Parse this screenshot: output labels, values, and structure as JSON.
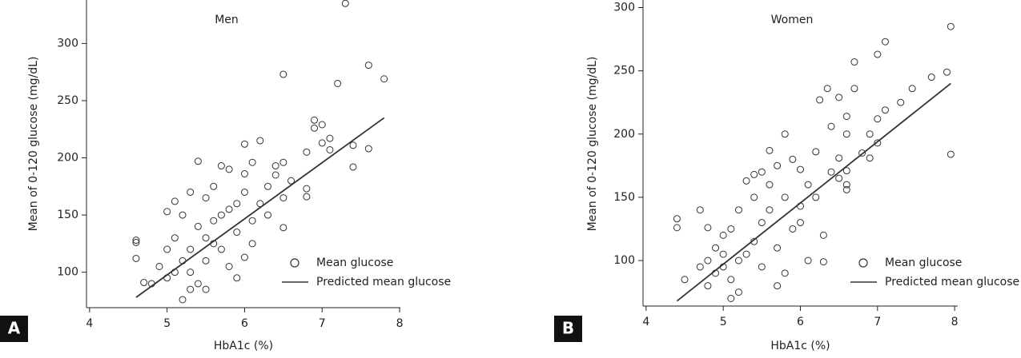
{
  "chart_data": [
    {
      "type": "scatter",
      "panel_label": "A",
      "title": "Men",
      "x_label": "HbA1c (%)",
      "y_label": "Mean of 0-120 glucose (mg/dL)",
      "xlim": [
        3.96,
        8.01
      ],
      "ylim": [
        69,
        338
      ],
      "xticks": [
        4,
        5,
        6,
        7,
        8
      ],
      "yticks": [
        100,
        150,
        200,
        250,
        300
      ],
      "color": "#333333",
      "series": [
        {
          "name": "Mean glucose",
          "type": "scatter",
          "x": [
            7.3,
            7.6,
            7.8,
            7.2,
            6.5,
            6.9,
            7.0,
            6.9,
            7.0,
            7.1,
            7.1,
            7.4,
            7.6,
            7.4,
            6.8,
            6.8,
            6.8,
            6.5,
            4.6,
            4.6,
            4.6,
            4.8,
            4.7,
            5.2,
            5.0,
            5.1,
            5.4,
            5.7,
            6.0,
            6.0,
            6.2,
            6.1,
            6.4,
            6.5,
            6.4,
            6.3,
            6.0,
            5.9,
            5.8,
            5.6,
            5.5,
            5.3,
            5.2,
            5.4,
            5.5,
            5.6,
            5.3,
            5.2,
            5.1,
            5.0,
            4.9,
            5.0,
            5.1,
            5.3,
            5.4,
            5.5,
            5.6,
            5.7,
            5.8,
            5.9,
            6.0,
            6.1,
            6.2,
            6.3,
            6.1,
            5.9,
            5.7,
            5.5,
            5.3,
            5.8,
            6.6,
            6.5
          ],
          "values": [
            335,
            281,
            269,
            265,
            273,
            233,
            229,
            226,
            213,
            217,
            207,
            211,
            208,
            192,
            205,
            173,
            166,
            139,
            128,
            126,
            112,
            90,
            91,
            76,
            153,
            162,
            197,
            193,
            212,
            186,
            215,
            196,
            193,
            196,
            185,
            175,
            170,
            160,
            155,
            175,
            165,
            170,
            150,
            140,
            130,
            125,
            120,
            110,
            100,
            95,
            105,
            120,
            130,
            100,
            90,
            110,
            145,
            120,
            105,
            95,
            113,
            145,
            160,
            150,
            125,
            135,
            150,
            85,
            85,
            190,
            180,
            165
          ]
        },
        {
          "name": "Predicted mean glucose",
          "type": "line",
          "x": [
            4.6,
            7.8
          ],
          "values": [
            78,
            235
          ]
        }
      ]
    },
    {
      "type": "scatter",
      "panel_label": "B",
      "title": "Women",
      "x_label": "HbA1c (%)",
      "y_label": "Mean of 0-120 glucose (mg/dL)",
      "xlim": [
        3.96,
        8.04
      ],
      "ylim": [
        64,
        306
      ],
      "xticks": [
        4,
        5,
        6,
        7,
        8
      ],
      "yticks": [
        100,
        150,
        200,
        250,
        300
      ],
      "color": "#333333",
      "series": [
        {
          "name": "Mean glucose",
          "type": "scatter",
          "x": [
            7.95,
            7.1,
            7.0,
            6.7,
            7.9,
            7.7,
            7.45,
            7.3,
            7.1,
            7.0,
            6.9,
            7.0,
            6.8,
            6.9,
            7.95,
            6.35,
            6.25,
            6.5,
            6.6,
            6.7,
            6.4,
            6.6,
            6.5,
            6.6,
            6.6,
            6.6,
            6.5,
            6.3,
            5.8,
            5.6,
            5.7,
            5.5,
            5.3,
            5.4,
            5.9,
            6.0,
            6.1,
            6.2,
            6.0,
            5.8,
            5.6,
            5.5,
            5.4,
            5.2,
            5.1,
            5.0,
            4.9,
            4.8,
            4.7,
            4.5,
            4.4,
            4.4,
            4.7,
            4.8,
            4.8,
            5.0,
            5.1,
            5.2,
            5.1,
            5.3,
            5.5,
            5.7,
            5.9,
            5.8,
            6.1,
            6.3,
            5.6,
            5.4,
            5.2,
            5.0,
            4.9,
            5.7,
            6.0,
            6.2,
            6.4
          ],
          "values": [
            285,
            273,
            263,
            257,
            249,
            245,
            236,
            225,
            219,
            212,
            200,
            193,
            185,
            181,
            184,
            236,
            227,
            229,
            214,
            236,
            206,
            200,
            181,
            171,
            160,
            156,
            165,
            99,
            200,
            187,
            175,
            170,
            163,
            168,
            180,
            172,
            160,
            186,
            143,
            150,
            140,
            130,
            150,
            140,
            125,
            120,
            110,
            100,
            95,
            85,
            133,
            126,
            140,
            126,
            80,
            95,
            85,
            75,
            70,
            105,
            95,
            110,
            125,
            90,
            100,
            120,
            160,
            115,
            100,
            105,
            90,
            80,
            130,
            150,
            170
          ]
        },
        {
          "name": "Predicted mean glucose",
          "type": "line",
          "x": [
            4.4,
            7.95
          ],
          "values": [
            68,
            240
          ]
        }
      ]
    }
  ]
}
